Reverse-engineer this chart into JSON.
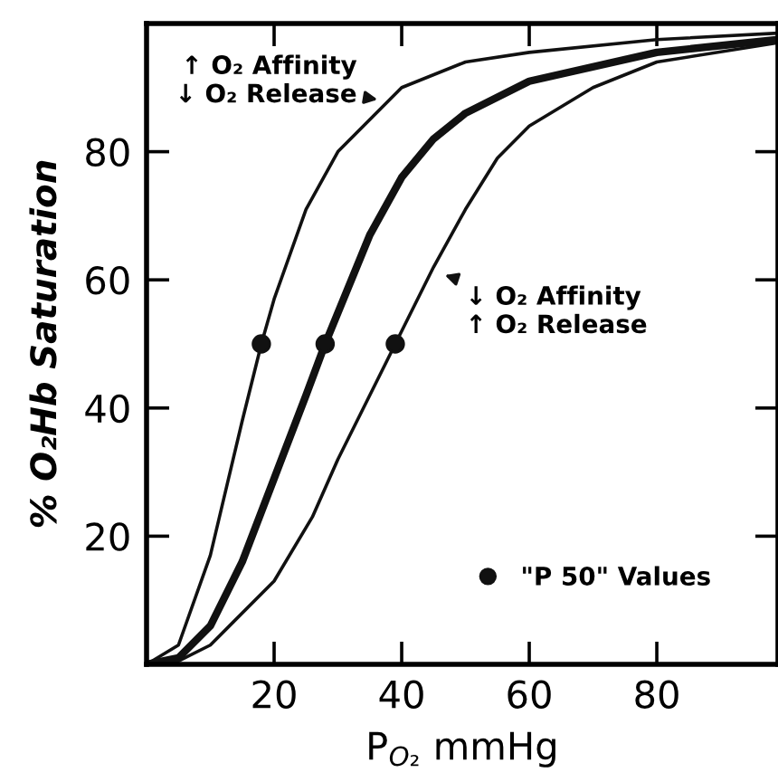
{
  "chart_data": {
    "type": "line",
    "xlabel": "P$_{O₂}$ mmHg",
    "ylabel": "% O₂Hb Saturation",
    "xlim": [
      0,
      99
    ],
    "ylim": [
      0,
      100
    ],
    "xticks": [
      20,
      40,
      60,
      80
    ],
    "yticks": [
      20,
      40,
      60,
      80
    ],
    "grid": false,
    "legend": "bottom right",
    "marker": "none",
    "line_style": "solid",
    "series": [
      {
        "color": "#111111",
        "x": [
          0,
          5,
          10,
          15,
          18,
          20,
          25,
          30,
          40,
          50,
          60,
          80,
          99
        ],
        "values": [
          0,
          3,
          17,
          38,
          50,
          57,
          71,
          80,
          90,
          94,
          95.5,
          97.5,
          98.5
        ]
      },
      {
        "color": "#111111",
        "x": [
          0,
          5,
          10,
          15,
          20,
          25,
          28,
          35,
          40,
          45,
          50,
          60,
          80,
          99
        ],
        "values": [
          0,
          1,
          6,
          16,
          29,
          42,
          50,
          67,
          76,
          82,
          86,
          91,
          95.5,
          97.5
        ]
      },
      {
        "color": "#111111",
        "x": [
          0,
          5,
          10,
          20,
          26,
          30,
          39,
          45,
          50,
          55,
          60,
          70,
          80,
          99
        ],
        "values": [
          0,
          0.5,
          3,
          13,
          23,
          32,
          50,
          62,
          71,
          79,
          84,
          90,
          94,
          97
        ]
      },
      {
        "type": "scatter",
        "name": "\"P 50\" Values",
        "color": "#111111",
        "marker": "circle",
        "x": [
          18,
          28,
          39
        ],
        "values": [
          50,
          50,
          50
        ]
      }
    ],
    "annotations": [
      {
        "text": "↑ O₂ Affinity\n↓ O₂ Release",
        "x": 37,
        "y": 88
      },
      {
        "text": "↓ O₂ Affinity\n↑ O₂ Release",
        "x": 46,
        "y": 61
      }
    ]
  }
}
